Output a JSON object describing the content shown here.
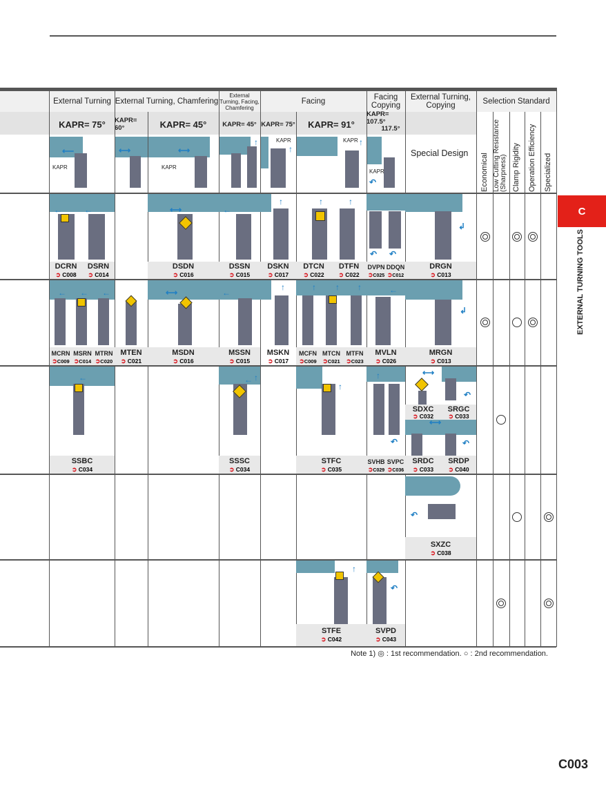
{
  "header": {
    "groups": [
      {
        "id": "ext_turning",
        "label": "External Turning"
      },
      {
        "id": "ext_chamfer",
        "label": "External Turning, Chamfering"
      },
      {
        "id": "ext_facing_chamfer",
        "label": "External Turning, Facing, Chamfering"
      },
      {
        "id": "facing",
        "label": "Facing"
      },
      {
        "id": "facing_copy",
        "label": "Facing Copying"
      },
      {
        "id": "ext_copy",
        "label": "External Turning, Copying"
      },
      {
        "id": "selection",
        "label": "Selection Standard"
      }
    ],
    "kapr": {
      "k75": "KAPR= 75°",
      "k60": "KAPR= 60°",
      "k45": "KAPR= 45°",
      "k45b": "KAPR= 45°",
      "k75b": "KAPR= 75°",
      "k91": "KAPR= 91°",
      "k107": "KAPR= 107.5°",
      "k117": "117.5°"
    },
    "diagram_label": "KAPR",
    "special_design": "Special Design",
    "criteria": [
      "Economical",
      "Low Cutting Resistance (Sharpness)",
      "Clamp Rigidity",
      "Operation Efficiency",
      "Specialized"
    ]
  },
  "rows": {
    "r1": [
      {
        "name": "DCRN",
        "ref": "C008"
      },
      {
        "name": "DSRN",
        "ref": "C014"
      },
      {
        "name": "DSDN",
        "ref": "C016"
      },
      {
        "name": "DSSN",
        "ref": "C015"
      },
      {
        "name": "DSKN",
        "ref": "C017"
      },
      {
        "name": "DTCN",
        "ref": "C022"
      },
      {
        "name": "DTFN",
        "ref": "C022"
      },
      {
        "name": "DVPN",
        "ref": "C025"
      },
      {
        "name": "DDQN",
        "ref": "C012"
      },
      {
        "name": "DRGN",
        "ref": "C013"
      }
    ],
    "r2": [
      {
        "name": "MCRN",
        "ref": "C009"
      },
      {
        "name": "MSRN",
        "ref": "C014"
      },
      {
        "name": "MTRN",
        "ref": "C020"
      },
      {
        "name": "MTEN",
        "ref": "C021"
      },
      {
        "name": "MSDN",
        "ref": "C016"
      },
      {
        "name": "MSSN",
        "ref": "C015"
      },
      {
        "name": "MSKN",
        "ref": "C017"
      },
      {
        "name": "MCFN",
        "ref": "C009"
      },
      {
        "name": "MTCN",
        "ref": "C021"
      },
      {
        "name": "MTFN",
        "ref": "C023"
      },
      {
        "name": "MVLN",
        "ref": "C026"
      },
      {
        "name": "MRGN",
        "ref": "C013"
      }
    ],
    "r3": [
      {
        "name": "SSBC",
        "ref": "C034"
      },
      {
        "name": "SSSC",
        "ref": "C034"
      },
      {
        "name": "STFC",
        "ref": "C035"
      },
      {
        "name": "SVHB",
        "ref": "C029"
      },
      {
        "name": "SVPC",
        "ref": "C036"
      },
      {
        "name": "SDXC",
        "ref": "C032"
      },
      {
        "name": "SRGC",
        "ref": "C033"
      },
      {
        "name": "SRDC",
        "ref": "C033"
      },
      {
        "name": "SRDP",
        "ref": "C040"
      }
    ],
    "r4": [
      {
        "name": "SXZC",
        "ref": "C038"
      }
    ],
    "r5": [
      {
        "name": "STFE",
        "ref": "C042"
      },
      {
        "name": "SVPD",
        "ref": "C043"
      }
    ]
  },
  "side": {
    "tab": "C",
    "title": "EXTERNAL TURNING TOOLS"
  },
  "note": "Note 1) ◎ : 1st recommendation. ○ : 2nd recommendation.",
  "page_number": "C003",
  "colors": {
    "tool": "#6b9fb0",
    "shank": "#6a6e80",
    "insert": "#f1c400",
    "accent": "#e32119",
    "arrow": "#1f7fc4"
  }
}
